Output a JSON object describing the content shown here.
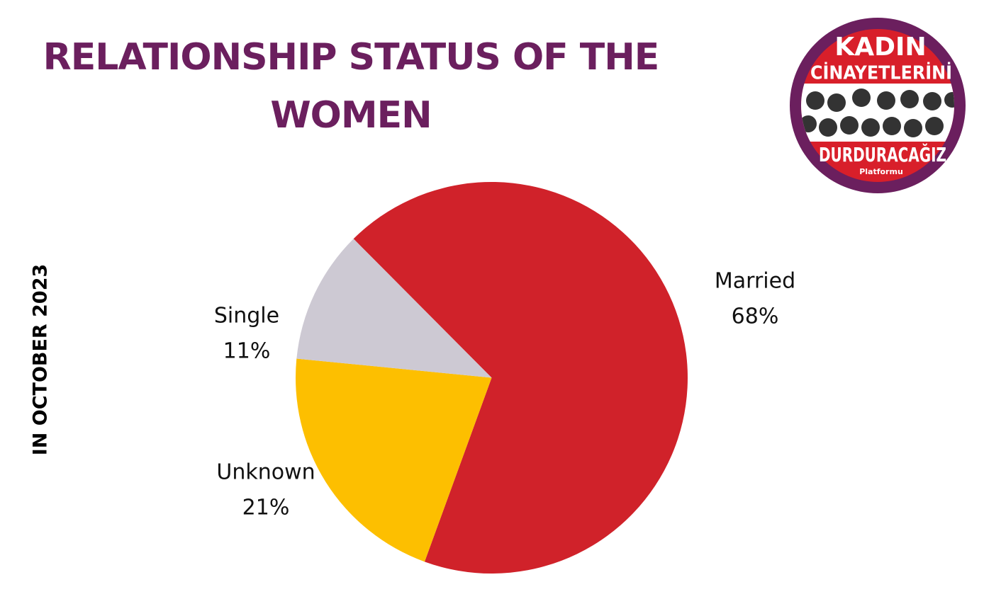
{
  "chart_data": {
    "type": "pie",
    "title": "RELATIONSHIP STATUS OF THE WOMEN",
    "subtitle": "IN OCTOBER 2023",
    "categories": [
      "Married",
      "Unknown",
      "Single"
    ],
    "values": [
      68,
      21,
      11
    ],
    "value_labels": [
      "68%",
      "21%",
      "11%"
    ],
    "colors": [
      "#d0222a",
      "#fdbf00",
      "#cdc9d3"
    ]
  },
  "logo": {
    "line1": "KADIN",
    "line2": "CİNAYETLERİNİ",
    "line3": "DURDURACAĞIZ",
    "line4": "Platformu"
  }
}
